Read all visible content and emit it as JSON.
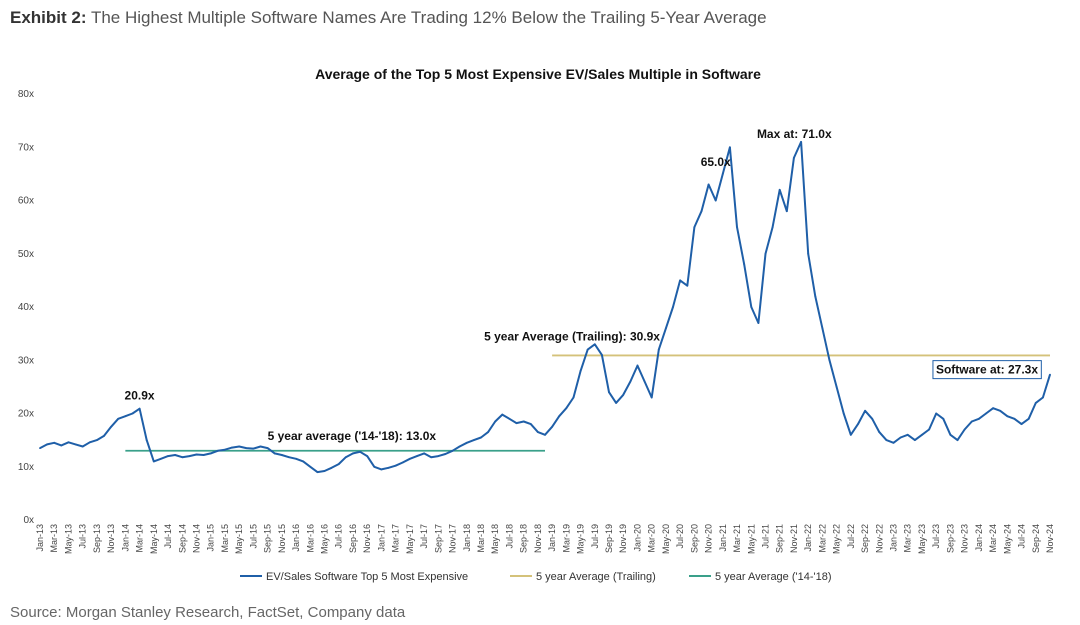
{
  "header": {
    "exhibit_label": "Exhibit 2:",
    "exhibit_title": "The Highest Multiple Software Names Are Trading 12% Below the Trailing 5-Year Average"
  },
  "source": "Source: Morgan Stanley Research, FactSet, Company data",
  "chart_data": {
    "type": "line",
    "title": "Average of the Top 5 Most Expensive EV/Sales Multiple in Software",
    "xlabel": "",
    "ylabel": "",
    "ylim": [
      0,
      80
    ],
    "y_ticks": [
      "0x",
      "10x",
      "20x",
      "30x",
      "40x",
      "50x",
      "60x",
      "70x",
      "80x"
    ],
    "x_tick_labels": [
      "Jan-13",
      "Mar-13",
      "May-13",
      "Jul-13",
      "Sep-13",
      "Nov-13",
      "Jan-14",
      "Mar-14",
      "May-14",
      "Jul-14",
      "Sep-14",
      "Nov-14",
      "Jan-15",
      "Mar-15",
      "May-15",
      "Jul-15",
      "Sep-15",
      "Nov-15",
      "Jan-16",
      "Mar-16",
      "May-16",
      "Jul-16",
      "Sep-16",
      "Nov-16",
      "Jan-17",
      "Mar-17",
      "May-17",
      "Jul-17",
      "Sep-17",
      "Nov-17",
      "Jan-18",
      "Mar-18",
      "May-18",
      "Jul-18",
      "Sep-18",
      "Nov-18",
      "Jan-19",
      "Mar-19",
      "May-19",
      "Jul-19",
      "Sep-19",
      "Nov-19",
      "Jan-20",
      "Mar-20",
      "May-20",
      "Jul-20",
      "Sep-20",
      "Nov-20",
      "Jan-21",
      "Mar-21",
      "May-21",
      "Jul-21",
      "Sep-21",
      "Nov-21",
      "Jan-22",
      "Mar-22",
      "May-22",
      "Jul-22",
      "Sep-22",
      "Nov-22",
      "Jan-23",
      "Mar-23",
      "May-23",
      "Jul-23",
      "Sep-23",
      "Nov-23",
      "Jan-24",
      "Mar-24",
      "May-24",
      "Jul-24",
      "Sep-24",
      "Nov-24"
    ],
    "grid": false,
    "legend_position": "bottom",
    "series": [
      {
        "name": "EV/Sales Software Top 5 Most Expensive",
        "color": "#1f5fa8",
        "months": [
          "Jan-13",
          "Feb-13",
          "Mar-13",
          "Apr-13",
          "May-13",
          "Jun-13",
          "Jul-13",
          "Aug-13",
          "Sep-13",
          "Oct-13",
          "Nov-13",
          "Dec-13",
          "Jan-14",
          "Feb-14",
          "Mar-14",
          "Apr-14",
          "May-14",
          "Jun-14",
          "Jul-14",
          "Aug-14",
          "Sep-14",
          "Oct-14",
          "Nov-14",
          "Dec-14",
          "Jan-15",
          "Feb-15",
          "Mar-15",
          "Apr-15",
          "May-15",
          "Jun-15",
          "Jul-15",
          "Aug-15",
          "Sep-15",
          "Oct-15",
          "Nov-15",
          "Dec-15",
          "Jan-16",
          "Feb-16",
          "Mar-16",
          "Apr-16",
          "May-16",
          "Jun-16",
          "Jul-16",
          "Aug-16",
          "Sep-16",
          "Oct-16",
          "Nov-16",
          "Dec-16",
          "Jan-17",
          "Feb-17",
          "Mar-17",
          "Apr-17",
          "May-17",
          "Jun-17",
          "Jul-17",
          "Aug-17",
          "Sep-17",
          "Oct-17",
          "Nov-17",
          "Dec-17",
          "Jan-18",
          "Feb-18",
          "Mar-18",
          "Apr-18",
          "May-18",
          "Jun-18",
          "Jul-18",
          "Aug-18",
          "Sep-18",
          "Oct-18",
          "Nov-18",
          "Dec-18",
          "Jan-19",
          "Feb-19",
          "Mar-19",
          "Apr-19",
          "May-19",
          "Jun-19",
          "Jul-19",
          "Aug-19",
          "Sep-19",
          "Oct-19",
          "Nov-19",
          "Dec-19",
          "Jan-20",
          "Feb-20",
          "Mar-20",
          "Apr-20",
          "May-20",
          "Jun-20",
          "Jul-20",
          "Aug-20",
          "Sep-20",
          "Oct-20",
          "Nov-20",
          "Dec-20",
          "Jan-21",
          "Feb-21",
          "Mar-21",
          "Apr-21",
          "May-21",
          "Jun-21",
          "Jul-21",
          "Aug-21",
          "Sep-21",
          "Oct-21",
          "Nov-21",
          "Dec-21",
          "Jan-22",
          "Feb-22",
          "Mar-22",
          "Apr-22",
          "May-22",
          "Jun-22",
          "Jul-22",
          "Aug-22",
          "Sep-22",
          "Oct-22",
          "Nov-22",
          "Dec-22",
          "Jan-23",
          "Feb-23",
          "Mar-23",
          "Apr-23",
          "May-23",
          "Jun-23",
          "Jul-23",
          "Aug-23",
          "Sep-23",
          "Oct-23",
          "Nov-23",
          "Dec-23",
          "Jan-24",
          "Feb-24",
          "Mar-24",
          "Apr-24",
          "May-24",
          "Jun-24",
          "Jul-24",
          "Aug-24",
          "Sep-24",
          "Oct-24",
          "Nov-24"
        ],
        "values": [
          13.5,
          14.2,
          14.5,
          14.0,
          14.6,
          14.2,
          13.8,
          14.6,
          15.0,
          15.8,
          17.5,
          19.0,
          19.5,
          20.0,
          20.9,
          15.0,
          11.0,
          11.5,
          12.0,
          12.2,
          11.8,
          12.0,
          12.3,
          12.2,
          12.5,
          13.0,
          13.2,
          13.6,
          13.8,
          13.5,
          13.4,
          13.8,
          13.5,
          12.5,
          12.2,
          11.8,
          11.5,
          11.0,
          10.0,
          9.0,
          9.2,
          9.8,
          10.5,
          11.8,
          12.5,
          12.8,
          12.0,
          10.0,
          9.5,
          9.8,
          10.2,
          10.8,
          11.5,
          12.0,
          12.5,
          11.8,
          12.0,
          12.4,
          13.0,
          13.8,
          14.5,
          15.0,
          15.5,
          16.5,
          18.5,
          19.8,
          19.0,
          18.2,
          18.5,
          18.0,
          16.5,
          16.0,
          17.5,
          19.5,
          21.0,
          23.0,
          28.0,
          32.0,
          33.0,
          31.0,
          24.0,
          22.0,
          23.5,
          26.0,
          29.0,
          26.0,
          23.0,
          32.0,
          36.0,
          40.0,
          45.0,
          44.0,
          55.0,
          58.0,
          63.0,
          60.0,
          65.0,
          70.0,
          55.0,
          48.0,
          40.0,
          37.0,
          50.0,
          55.0,
          62.0,
          58.0,
          68.0,
          71.0,
          50.0,
          42.0,
          36.0,
          30.0,
          25.0,
          20.0,
          16.0,
          18.0,
          20.5,
          19.0,
          16.5,
          15.0,
          14.5,
          15.5,
          16.0,
          15.0,
          16.0,
          17.0,
          20.0,
          19.0,
          16.0,
          15.0,
          17.0,
          18.5,
          19.0,
          20.0,
          21.0,
          20.5,
          19.5,
          19.0,
          18.0,
          19.0,
          22.0,
          23.0,
          27.3
        ]
      },
      {
        "name": "5 year Average (Trailing)",
        "color": "#d4c27a",
        "start": "Jan-19",
        "end": "Nov-24",
        "value": 30.9
      },
      {
        "name": "5 year Average ('14-'18)",
        "color": "#3aa08a",
        "start": "Jan-14",
        "end": "Dec-18",
        "value": 13.0
      }
    ],
    "annotations": [
      {
        "text": "20.9x",
        "month": "Mar-14",
        "value": 20.9
      },
      {
        "text": "5 year average ('14-'18): 13.0x",
        "month": "Sep-15",
        "value": 13.0
      },
      {
        "text": "5 year Average (Trailing): 30.9x",
        "month": "Jan-19",
        "value": 30.9
      },
      {
        "text": "65.0x",
        "month": "Dec-20",
        "value": 65.0
      },
      {
        "text": "Max at: 71.0x",
        "month": "Nov-21",
        "value": 71.0
      },
      {
        "text": "Software at: 27.3x",
        "month": "Nov-24",
        "value": 27.3
      }
    ]
  }
}
